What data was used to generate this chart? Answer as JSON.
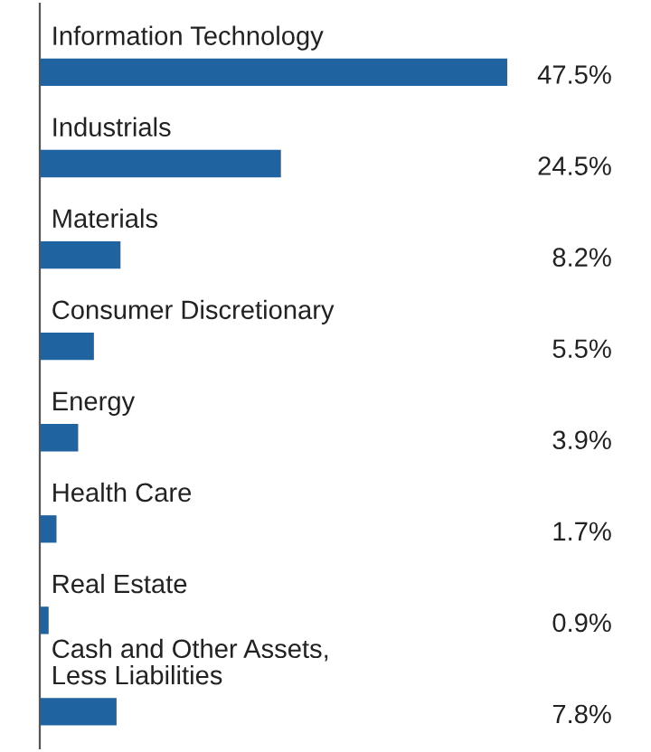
{
  "chart_data": {
    "type": "bar",
    "orientation": "horizontal",
    "data_labels": true,
    "color": "#1f64a0",
    "categories": [
      "Information Technology",
      "Industrials",
      "Materials",
      "Consumer Discretionary",
      "Energy",
      "Health Care",
      "Real Estate",
      "Cash and Other Assets,\nLess Liabilities"
    ],
    "values": [
      47.5,
      24.5,
      8.2,
      5.5,
      3.9,
      1.7,
      0.9,
      7.8
    ],
    "value_labels": [
      "47.5%",
      "24.5%",
      "8.2%",
      "5.5%",
      "3.9%",
      "1.7%",
      "0.9%",
      "7.8%"
    ]
  }
}
